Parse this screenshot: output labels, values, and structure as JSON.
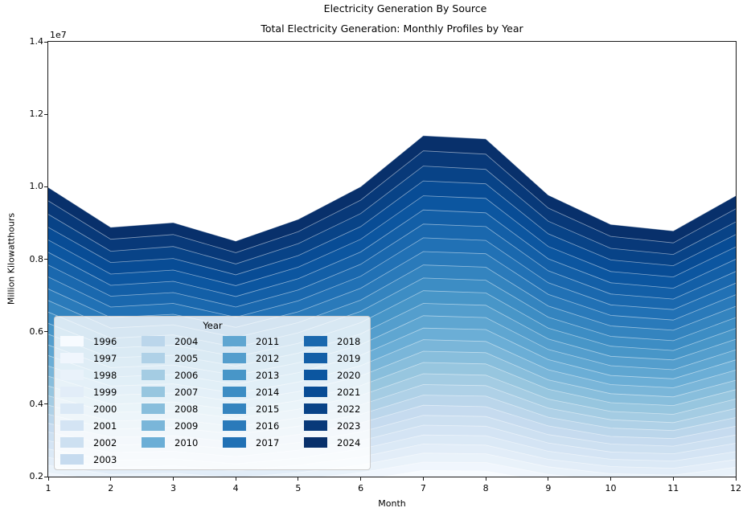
{
  "figure": {
    "suptitle": "Electricity Generation By Source",
    "title": "Total Electricity Generation: Monthly Profiles by Year",
    "xlabel": "Month",
    "ylabel": "Million Kilowatthours",
    "offset_label": "1e7",
    "background_color": "#ffffff",
    "spine_color": "#1a1a1a"
  },
  "axes": {
    "x_ticks": [
      "1",
      "2",
      "3",
      "4",
      "5",
      "6",
      "7",
      "8",
      "9",
      "10",
      "11",
      "12"
    ],
    "y_ticks": [
      "0.2",
      "0.4",
      "0.6",
      "0.8",
      "1.0",
      "1.2",
      "1.4"
    ],
    "xlim": [
      1,
      12
    ],
    "ylim_e7": [
      0.2,
      1.4
    ],
    "grid": false
  },
  "legend": {
    "title": "Year",
    "position": "lower left",
    "columns": [
      [
        "1996",
        "1997",
        "1998",
        "1999",
        "2000",
        "2001",
        "2002",
        "2003"
      ],
      [
        "2004",
        "2005",
        "2006",
        "2007",
        "2008",
        "2009",
        "2010"
      ],
      [
        "2011",
        "2012",
        "2013",
        "2014",
        "2015",
        "2016",
        "2017"
      ],
      [
        "2018",
        "2019",
        "2020",
        "2021",
        "2022",
        "2023",
        "2024"
      ]
    ]
  },
  "colormap": {
    "name": "Blues",
    "stops": [
      "#f7fbff",
      "#deebf7",
      "#c6dbef",
      "#9ecae1",
      "#6baed6",
      "#4292c6",
      "#2171b5",
      "#08519c",
      "#08306b"
    ],
    "edge_line_color": "rgba(255,255,255,0.5)"
  },
  "chart_data": {
    "type": "area",
    "title": "Total Electricity Generation: Monthly Profiles by Year",
    "xlabel": "Month",
    "ylabel": "Million Kilowatthours",
    "x": [
      1,
      2,
      3,
      4,
      5,
      6,
      7,
      8,
      9,
      10,
      11,
      12
    ],
    "ylim": [
      2000000,
      14000000
    ],
    "unit_multiplier": 1000000,
    "legend_position": "lower left",
    "series": [
      {
        "name": "1996",
        "values": [
          1.9,
          1.69,
          1.71,
          1.62,
          1.73,
          1.9,
          2.17,
          2.15,
          1.86,
          1.7,
          1.67,
          1.85
        ]
      },
      {
        "name": "1997",
        "values": [
          2.1,
          1.87,
          1.9,
          1.79,
          1.92,
          2.11,
          2.4,
          2.39,
          2.06,
          1.89,
          1.85,
          2.05
        ]
      },
      {
        "name": "1998",
        "values": [
          2.31,
          2.06,
          2.09,
          1.97,
          2.11,
          2.32,
          2.65,
          2.63,
          2.27,
          2.08,
          2.04,
          2.26
        ]
      },
      {
        "name": "1999",
        "values": [
          2.53,
          2.25,
          2.29,
          2.16,
          2.31,
          2.54,
          2.9,
          2.87,
          2.48,
          2.28,
          2.23,
          2.47
        ]
      },
      {
        "name": "2000",
        "values": [
          2.76,
          2.45,
          2.49,
          2.35,
          2.51,
          2.76,
          3.15,
          3.13,
          2.7,
          2.48,
          2.43,
          2.69
        ]
      },
      {
        "name": "2001",
        "values": [
          2.99,
          2.66,
          2.7,
          2.55,
          2.73,
          2.99,
          3.42,
          3.39,
          2.93,
          2.68,
          2.63,
          2.92
        ]
      },
      {
        "name": "2002",
        "values": [
          3.23,
          2.87,
          2.91,
          2.75,
          2.94,
          3.23,
          3.69,
          3.66,
          3.16,
          2.9,
          2.84,
          3.15
        ]
      },
      {
        "name": "2003",
        "values": [
          3.47,
          3.09,
          3.13,
          2.95,
          3.16,
          3.48,
          3.97,
          3.93,
          3.4,
          3.11,
          3.05,
          3.39
        ]
      },
      {
        "name": "2004",
        "values": [
          3.72,
          3.31,
          3.36,
          3.17,
          3.39,
          3.72,
          4.25,
          4.22,
          3.64,
          3.34,
          3.27,
          3.63
        ]
      },
      {
        "name": "2005",
        "values": [
          3.97,
          3.53,
          3.59,
          3.38,
          3.62,
          3.98,
          4.54,
          4.51,
          3.89,
          3.57,
          3.49,
          3.88
        ]
      },
      {
        "name": "2006",
        "values": [
          4.23,
          3.77,
          3.82,
          3.61,
          3.86,
          4.24,
          4.84,
          4.8,
          4.14,
          3.8,
          3.72,
          4.14
        ]
      },
      {
        "name": "2007",
        "values": [
          4.5,
          4.0,
          4.06,
          3.83,
          4.1,
          4.51,
          5.15,
          5.11,
          4.41,
          4.04,
          3.96,
          4.4
        ]
      },
      {
        "name": "2008",
        "values": [
          4.77,
          4.25,
          4.31,
          4.07,
          4.35,
          4.78,
          5.46,
          5.42,
          4.67,
          4.29,
          4.2,
          4.66
        ]
      },
      {
        "name": "2009",
        "values": [
          5.05,
          4.5,
          4.56,
          4.3,
          4.61,
          5.06,
          5.78,
          5.73,
          4.95,
          4.54,
          4.45,
          4.94
        ]
      },
      {
        "name": "2010",
        "values": [
          5.34,
          4.75,
          4.82,
          4.55,
          4.87,
          5.35,
          6.1,
          6.06,
          5.23,
          4.79,
          4.7,
          5.22
        ]
      },
      {
        "name": "2011",
        "values": [
          5.63,
          5.01,
          5.08,
          4.8,
          5.14,
          5.64,
          6.44,
          6.39,
          5.51,
          5.06,
          4.95,
          5.5
        ]
      },
      {
        "name": "2012",
        "values": [
          5.93,
          5.28,
          5.35,
          5.05,
          5.41,
          5.94,
          6.78,
          6.73,
          5.8,
          5.32,
          5.22,
          5.79
        ]
      },
      {
        "name": "2013",
        "values": [
          6.23,
          5.55,
          5.63,
          5.31,
          5.68,
          6.25,
          7.13,
          7.07,
          6.1,
          5.6,
          5.48,
          6.09
        ]
      },
      {
        "name": "2014",
        "values": [
          6.54,
          5.82,
          5.91,
          5.57,
          5.97,
          6.56,
          7.48,
          7.42,
          6.4,
          5.87,
          5.75,
          6.39
        ]
      },
      {
        "name": "2015",
        "values": [
          6.86,
          6.1,
          6.19,
          5.84,
          6.25,
          6.87,
          7.84,
          7.78,
          6.71,
          6.16,
          6.04,
          6.7
        ]
      },
      {
        "name": "2016",
        "values": [
          7.18,
          6.39,
          6.48,
          6.12,
          6.55,
          7.2,
          8.21,
          8.15,
          7.03,
          6.45,
          6.32,
          7.02
        ]
      },
      {
        "name": "2017",
        "values": [
          7.51,
          6.68,
          6.78,
          6.4,
          6.85,
          7.53,
          8.59,
          8.52,
          7.35,
          6.74,
          6.61,
          7.34
        ]
      },
      {
        "name": "2018",
        "values": [
          7.84,
          6.98,
          7.08,
          6.68,
          7.15,
          7.86,
          8.97,
          8.9,
          7.68,
          7.04,
          6.9,
          7.66
        ]
      },
      {
        "name": "2019",
        "values": [
          8.19,
          7.28,
          7.39,
          6.97,
          7.46,
          8.2,
          9.36,
          9.28,
          8.01,
          7.35,
          7.2,
          8.0
        ]
      },
      {
        "name": "2020",
        "values": [
          8.53,
          7.59,
          7.7,
          7.27,
          7.78,
          8.55,
          9.75,
          9.68,
          8.35,
          7.66,
          7.51,
          8.34
        ]
      },
      {
        "name": "2021",
        "values": [
          8.88,
          7.91,
          8.02,
          7.57,
          8.1,
          8.9,
          10.16,
          10.08,
          8.7,
          7.98,
          7.82,
          8.68
        ]
      },
      {
        "name": "2022",
        "values": [
          9.24,
          8.22,
          8.35,
          7.87,
          8.43,
          9.26,
          10.57,
          10.48,
          9.05,
          8.3,
          8.13,
          9.03
        ]
      },
      {
        "name": "2023",
        "values": [
          9.61,
          8.55,
          8.68,
          8.18,
          8.76,
          9.63,
          10.99,
          10.9,
          9.41,
          8.63,
          8.45,
          9.39
        ]
      },
      {
        "name": "2024",
        "values": [
          9.98,
          8.88,
          9.01,
          8.5,
          9.1,
          10.0,
          11.41,
          11.32,
          9.77,
          8.96,
          8.78,
          9.75
        ]
      }
    ]
  }
}
